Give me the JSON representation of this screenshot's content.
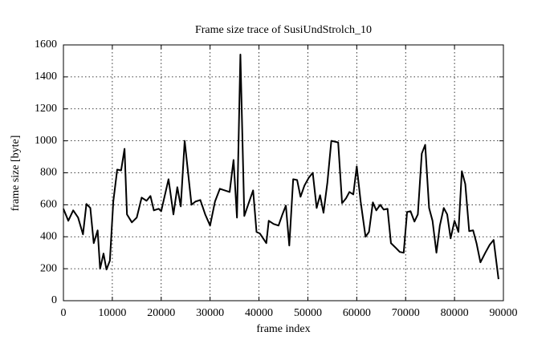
{
  "chart_data": {
    "type": "line",
    "title": "Frame size trace of SusiUndStrolch_10",
    "x_label": "frame index",
    "y_label": "frame size [byte]",
    "x": [
      0,
      1000,
      2000,
      3000,
      4000,
      4700,
      5500,
      6200,
      7000,
      7500,
      8200,
      8800,
      9500,
      10200,
      11000,
      11800,
      12500,
      13000,
      14000,
      15000,
      16000,
      17000,
      17800,
      18500,
      19500,
      20000,
      21500,
      22500,
      23300,
      24000,
      24800,
      26200,
      27000,
      28000,
      29000,
      30000,
      31000,
      32000,
      33000,
      34000,
      34800,
      35500,
      36200,
      37000,
      38000,
      38800,
      39500,
      40200,
      41500,
      42000,
      43000,
      44000,
      44800,
      45500,
      46200,
      47000,
      47800,
      48500,
      49300,
      50200,
      51000,
      51800,
      52500,
      53200,
      54000,
      54800,
      56200,
      57000,
      57800,
      58500,
      59300,
      60000,
      60800,
      61800,
      62500,
      63300,
      64000,
      64800,
      65500,
      66300,
      67000,
      68000,
      68800,
      69600,
      70300,
      71000,
      71800,
      72500,
      73300,
      74000,
      74800,
      75500,
      76300,
      77000,
      77800,
      78500,
      79200,
      80000,
      80800,
      81500,
      82200,
      83000,
      83800,
      84500,
      85300,
      86300,
      87200,
      88000,
      89000
    ],
    "series": [
      {
        "name": "frame size",
        "color": "#000000",
        "values": [
          575,
          500,
          565,
          520,
          415,
          605,
          580,
          360,
          440,
          200,
          295,
          195,
          250,
          620,
          820,
          815,
          950,
          540,
          490,
          520,
          645,
          625,
          655,
          565,
          575,
          560,
          760,
          540,
          710,
          590,
          1000,
          600,
          620,
          630,
          540,
          470,
          620,
          700,
          690,
          680,
          880,
          520,
          1540,
          530,
          620,
          690,
          430,
          420,
          360,
          500,
          480,
          470,
          540,
          595,
          345,
          760,
          755,
          650,
          720,
          770,
          800,
          580,
          660,
          550,
          740,
          1000,
          990,
          610,
          640,
          680,
          665,
          840,
          620,
          400,
          430,
          615,
          565,
          600,
          570,
          575,
          360,
          330,
          305,
          300,
          555,
          560,
          495,
          540,
          920,
          975,
          580,
          500,
          300,
          470,
          580,
          540,
          390,
          500,
          430,
          810,
          730,
          435,
          440,
          360,
          240,
          300,
          350,
          380,
          135
        ]
      }
    ],
    "xlim": [
      0,
      90000
    ],
    "ylim": [
      0,
      1600
    ],
    "xticks": [
      0,
      10000,
      20000,
      30000,
      40000,
      50000,
      60000,
      70000,
      80000,
      90000
    ],
    "yticks": [
      0,
      200,
      400,
      600,
      800,
      1000,
      1200,
      1400,
      1600
    ],
    "grid": true
  }
}
